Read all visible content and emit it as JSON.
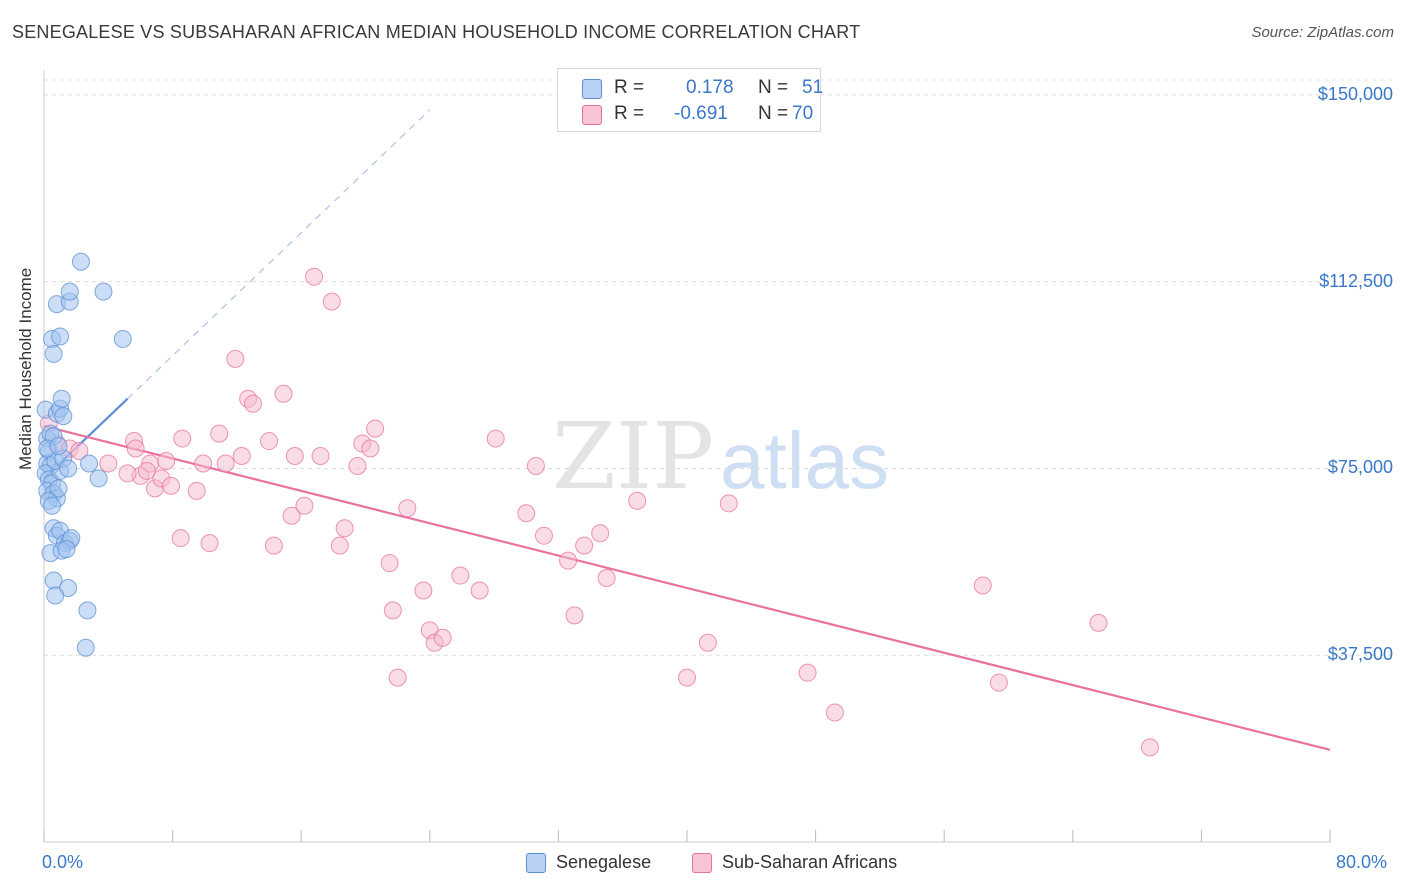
{
  "title": "SENEGALESE VS SUBSAHARAN AFRICAN MEDIAN HOUSEHOLD INCOME CORRELATION CHART",
  "source": "Source: ZipAtlas.com",
  "watermark": {
    "zip": "ZIP",
    "atlas": "atlas"
  },
  "legend": {
    "row1": {
      "r_label": "R =",
      "r_value": "0.178",
      "n_label": "N =",
      "n_value": "51"
    },
    "row2": {
      "r_label": "R =",
      "r_value": "-0.691",
      "n_label": "N =",
      "n_value": "70"
    }
  },
  "colors": {
    "blue": "#5b8fd6",
    "blue_fill": "#b9d2f3",
    "pink": "#e8729c",
    "pink_fill": "#f7c4d5",
    "axis_text": "#3a78c9"
  },
  "chart_data": {
    "type": "scatter",
    "title": "SENEGALESE VS SUBSAHARAN AFRICAN MEDIAN HOUSEHOLD INCOME CORRELATION CHART",
    "xlabel": "",
    "ylabel": "Median Household Income",
    "xlim": [
      0,
      80
    ],
    "ylim": [
      0,
      155000
    ],
    "x_tick_labels": [
      "0.0%",
      "80.0%"
    ],
    "y_ticks": [
      37500,
      75000,
      112500,
      150000
    ],
    "y_tick_labels": [
      "$37,500",
      "$75,000",
      "$112,500",
      "$150,000"
    ],
    "grid": true,
    "legend_position": "top-center",
    "series": [
      {
        "name": "Senegalese",
        "color": "#5b8fd6",
        "R": 0.178,
        "N": 51,
        "points": [
          [
            0.1,
            86800
          ],
          [
            0.2,
            81000
          ],
          [
            0.3,
            78500
          ],
          [
            0.2,
            76000
          ],
          [
            0.4,
            75500
          ],
          [
            0.1,
            74000
          ],
          [
            0.3,
            72800
          ],
          [
            0.5,
            72000
          ],
          [
            0.2,
            70500
          ],
          [
            0.6,
            70000
          ],
          [
            0.8,
            69000
          ],
          [
            0.3,
            68500
          ],
          [
            0.5,
            67500
          ],
          [
            0.9,
            71000
          ],
          [
            1.0,
            74500
          ],
          [
            0.7,
            76500
          ],
          [
            1.2,
            77000
          ],
          [
            1.5,
            75000
          ],
          [
            0.4,
            82000
          ],
          [
            0.6,
            81500
          ],
          [
            0.8,
            86000
          ],
          [
            1.0,
            87000
          ],
          [
            1.1,
            89000
          ],
          [
            0.5,
            101000
          ],
          [
            1.0,
            101500
          ],
          [
            0.6,
            98000
          ],
          [
            0.8,
            108000
          ],
          [
            1.6,
            108500
          ],
          [
            1.6,
            110500
          ],
          [
            3.7,
            110500
          ],
          [
            2.3,
            116500
          ],
          [
            4.9,
            101000
          ],
          [
            0.6,
            63000
          ],
          [
            0.8,
            61500
          ],
          [
            1.0,
            62500
          ],
          [
            1.3,
            60000
          ],
          [
            1.6,
            60500
          ],
          [
            1.7,
            61000
          ],
          [
            0.4,
            58000
          ],
          [
            1.1,
            58500
          ],
          [
            1.4,
            58800
          ],
          [
            0.6,
            52500
          ],
          [
            1.5,
            51000
          ],
          [
            0.7,
            49500
          ],
          [
            2.7,
            46500
          ],
          [
            2.6,
            39000
          ],
          [
            3.4,
            73000
          ],
          [
            2.8,
            76000
          ],
          [
            0.2,
            79000
          ],
          [
            0.9,
            79500
          ],
          [
            1.2,
            85500
          ]
        ]
      },
      {
        "name": "Sub-Saharan Africans",
        "color": "#e8729c",
        "R": -0.691,
        "N": 70,
        "points": [
          [
            0.3,
            84000
          ],
          [
            0.8,
            80000
          ],
          [
            1.6,
            79000
          ],
          [
            2.2,
            78500
          ],
          [
            4.0,
            76000
          ],
          [
            5.6,
            80500
          ],
          [
            5.7,
            79000
          ],
          [
            6.0,
            73500
          ],
          [
            5.2,
            74000
          ],
          [
            6.6,
            76000
          ],
          [
            6.4,
            74500
          ],
          [
            6.9,
            71000
          ],
          [
            7.3,
            73000
          ],
          [
            7.6,
            76500
          ],
          [
            7.9,
            71500
          ],
          [
            8.5,
            61000
          ],
          [
            8.6,
            81000
          ],
          [
            9.5,
            70500
          ],
          [
            9.9,
            76000
          ],
          [
            10.3,
            60000
          ],
          [
            10.9,
            82000
          ],
          [
            11.3,
            76000
          ],
          [
            11.9,
            97000
          ],
          [
            12.3,
            77500
          ],
          [
            12.7,
            89000
          ],
          [
            13.0,
            88000
          ],
          [
            14.0,
            80500
          ],
          [
            14.3,
            59500
          ],
          [
            14.9,
            90000
          ],
          [
            15.4,
            65500
          ],
          [
            15.6,
            77500
          ],
          [
            16.2,
            67500
          ],
          [
            17.2,
            77500
          ],
          [
            16.8,
            113500
          ],
          [
            17.9,
            108500
          ],
          [
            18.4,
            59500
          ],
          [
            18.7,
            63000
          ],
          [
            19.5,
            75500
          ],
          [
            19.8,
            80000
          ],
          [
            20.3,
            79000
          ],
          [
            20.6,
            83000
          ],
          [
            21.5,
            56000
          ],
          [
            21.7,
            46500
          ],
          [
            22.0,
            33000
          ],
          [
            22.6,
            67000
          ],
          [
            23.6,
            50500
          ],
          [
            24.0,
            42500
          ],
          [
            24.3,
            40000
          ],
          [
            24.8,
            41000
          ],
          [
            25.9,
            53500
          ],
          [
            27.1,
            50500
          ],
          [
            28.1,
            81000
          ],
          [
            30.0,
            66000
          ],
          [
            30.6,
            75500
          ],
          [
            31.1,
            61500
          ],
          [
            32.6,
            56500
          ],
          [
            33.0,
            45500
          ],
          [
            33.6,
            59500
          ],
          [
            34.6,
            62000
          ],
          [
            35.0,
            53000
          ],
          [
            36.9,
            68500
          ],
          [
            40.0,
            33000
          ],
          [
            41.3,
            40000
          ],
          [
            42.6,
            68000
          ],
          [
            47.5,
            34000
          ],
          [
            49.2,
            26000
          ],
          [
            58.4,
            51500
          ],
          [
            59.4,
            32000
          ],
          [
            65.6,
            44000
          ],
          [
            68.8,
            19000
          ]
        ]
      }
    ],
    "trend_lines": [
      {
        "series": "Senegalese",
        "x": [
          0.0,
          5.2
        ],
        "y": [
          73000,
          89000
        ],
        "extension": {
          "x": [
            5.2,
            24.0
          ],
          "y": [
            89000,
            147000
          ]
        }
      },
      {
        "series": "Sub-Saharan Africans",
        "x": [
          0.0,
          80.0
        ],
        "y": [
          83500,
          18500
        ]
      }
    ]
  }
}
